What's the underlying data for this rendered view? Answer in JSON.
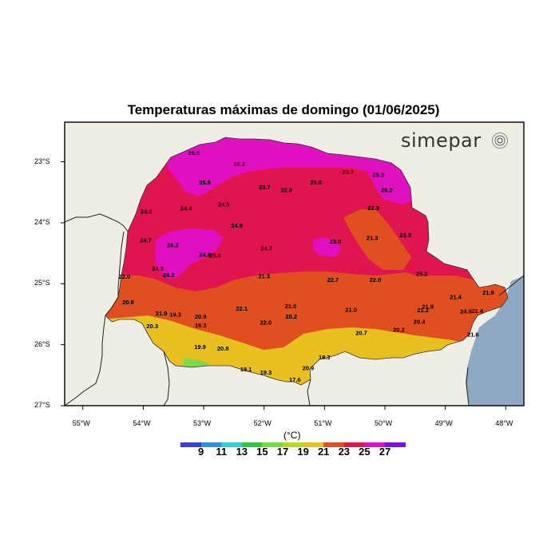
{
  "title": "Temperaturas máximas de domingo (01/06/2025)",
  "brand": "simepar",
  "unit_label": "(°C)",
  "colors": {
    "land_background": "#efeee5",
    "ocean": "#8fa9c4",
    "temp_17_19": "#7fd84a",
    "temp_19_21": "#e8c01f",
    "temp_21_23": "#e04f1f",
    "temp_23_25": "#e0144f",
    "temp_25_27": "#e010c0"
  },
  "colorbar": {
    "colors": [
      "#3b40d8",
      "#2f8fe0",
      "#30d0d0",
      "#30c840",
      "#70e040",
      "#b8d820",
      "#e8c01f",
      "#e04f1f",
      "#e0144f",
      "#e010c0",
      "#8010e8"
    ],
    "labels": [
      "9",
      "11",
      "13",
      "15",
      "17",
      "19",
      "21",
      "23",
      "25",
      "27"
    ]
  },
  "chart_data": {
    "type": "map",
    "title": "Temperaturas máximas de domingo (01/06/2025)",
    "region": "Paraná, Brazil",
    "x_ticks": [
      "55°W",
      "54°W",
      "53°W",
      "52°W",
      "51°W",
      "50°W",
      "49°W",
      "48°W"
    ],
    "y_ticks": [
      "23°S",
      "24°S",
      "25°S",
      "26°S",
      "27°S"
    ],
    "xlim": [
      -55.3,
      -47.7
    ],
    "ylim": [
      -27.0,
      -22.35
    ],
    "legend_units": "(°C)",
    "contour_levels": [
      9,
      11,
      13,
      15,
      17,
      19,
      21,
      23,
      25,
      27
    ],
    "station_values": [
      {
        "lon": -53.16,
        "lat": -22.85,
        "value": "25.5"
      },
      {
        "lon": -52.41,
        "lat": -23.03,
        "value": "25.2"
      },
      {
        "lon": -52.98,
        "lat": -23.33,
        "value": "25.5"
      },
      {
        "lon": -51.99,
        "lat": -23.41,
        "value": "23.7"
      },
      {
        "lon": -51.63,
        "lat": -23.46,
        "value": "22.9"
      },
      {
        "lon": -51.14,
        "lat": -23.33,
        "value": "25.8"
      },
      {
        "lon": -50.61,
        "lat": -23.16,
        "value": "23.7"
      },
      {
        "lon": -50.11,
        "lat": -23.21,
        "value": "25.3"
      },
      {
        "lon": -49.97,
        "lat": -23.46,
        "value": "26.2"
      },
      {
        "lon": -50.19,
        "lat": -23.75,
        "value": "22.9"
      },
      {
        "lon": -53.95,
        "lat": -23.81,
        "value": "24.0"
      },
      {
        "lon": -53.29,
        "lat": -23.76,
        "value": "24.4"
      },
      {
        "lon": -52.67,
        "lat": -23.69,
        "value": "24.5"
      },
      {
        "lon": -52.45,
        "lat": -24.04,
        "value": "24.9"
      },
      {
        "lon": -50.82,
        "lat": -24.3,
        "value": "25.0"
      },
      {
        "lon": -50.21,
        "lat": -24.24,
        "value": "21.3"
      },
      {
        "lon": -49.66,
        "lat": -24.2,
        "value": "23.3"
      },
      {
        "lon": -53.96,
        "lat": -24.28,
        "value": "24.7"
      },
      {
        "lon": -53.51,
        "lat": -24.36,
        "value": "26.2"
      },
      {
        "lon": -52.98,
        "lat": -24.52,
        "value": "24.8"
      },
      {
        "lon": -52.81,
        "lat": -24.53,
        "value": "25.0"
      },
      {
        "lon": -51.96,
        "lat": -24.41,
        "value": "24.7"
      },
      {
        "lon": -53.76,
        "lat": -24.75,
        "value": "24.0"
      },
      {
        "lon": -53.58,
        "lat": -24.85,
        "value": "26.2"
      },
      {
        "lon": -54.31,
        "lat": -24.88,
        "value": "22.0"
      },
      {
        "lon": -52.0,
        "lat": -24.87,
        "value": "21.3"
      },
      {
        "lon": -50.86,
        "lat": -24.93,
        "value": "22.7"
      },
      {
        "lon": -50.16,
        "lat": -24.93,
        "value": "22.0"
      },
      {
        "lon": -49.39,
        "lat": -24.83,
        "value": "25.2"
      },
      {
        "lon": -54.25,
        "lat": -25.3,
        "value": "20.8"
      },
      {
        "lon": -53.7,
        "lat": -25.48,
        "value": "21.9"
      },
      {
        "lon": -53.47,
        "lat": -25.5,
        "value": "19.3"
      },
      {
        "lon": -53.05,
        "lat": -25.53,
        "value": "20.9"
      },
      {
        "lon": -52.37,
        "lat": -25.4,
        "value": "22.1"
      },
      {
        "lon": -51.56,
        "lat": -25.36,
        "value": "21.0"
      },
      {
        "lon": -50.56,
        "lat": -25.42,
        "value": "21.0"
      },
      {
        "lon": -49.29,
        "lat": -25.37,
        "value": "21.9"
      },
      {
        "lon": -49.37,
        "lat": -25.43,
        "value": "21.2"
      },
      {
        "lon": -48.83,
        "lat": -25.21,
        "value": "21.4"
      },
      {
        "lon": -48.29,
        "lat": -25.14,
        "value": "21.9"
      },
      {
        "lon": -53.85,
        "lat": -25.69,
        "value": "20.3"
      },
      {
        "lon": -53.05,
        "lat": -25.68,
        "value": "19.3"
      },
      {
        "lon": -51.97,
        "lat": -25.63,
        "value": "22.0"
      },
      {
        "lon": -51.55,
        "lat": -25.53,
        "value": "20.2"
      },
      {
        "lon": -50.39,
        "lat": -25.8,
        "value": "20.7"
      },
      {
        "lon": -49.77,
        "lat": -25.75,
        "value": "20.2"
      },
      {
        "lon": -49.43,
        "lat": -25.62,
        "value": "20.4"
      },
      {
        "lon": -48.66,
        "lat": -25.45,
        "value": "24.8"
      },
      {
        "lon": -48.47,
        "lat": -25.44,
        "value": "22.4"
      },
      {
        "lon": -48.54,
        "lat": -25.83,
        "value": "21.6"
      },
      {
        "lon": -53.06,
        "lat": -26.03,
        "value": "19.9"
      },
      {
        "lon": -52.68,
        "lat": -26.06,
        "value": "20.8"
      },
      {
        "lon": -51.0,
        "lat": -26.2,
        "value": "18.3"
      },
      {
        "lon": -52.3,
        "lat": -26.4,
        "value": "19.1"
      },
      {
        "lon": -51.97,
        "lat": -26.45,
        "value": "19.3"
      },
      {
        "lon": -51.27,
        "lat": -26.38,
        "value": "20.9"
      },
      {
        "lon": -51.49,
        "lat": -26.57,
        "value": "17.6"
      }
    ]
  }
}
